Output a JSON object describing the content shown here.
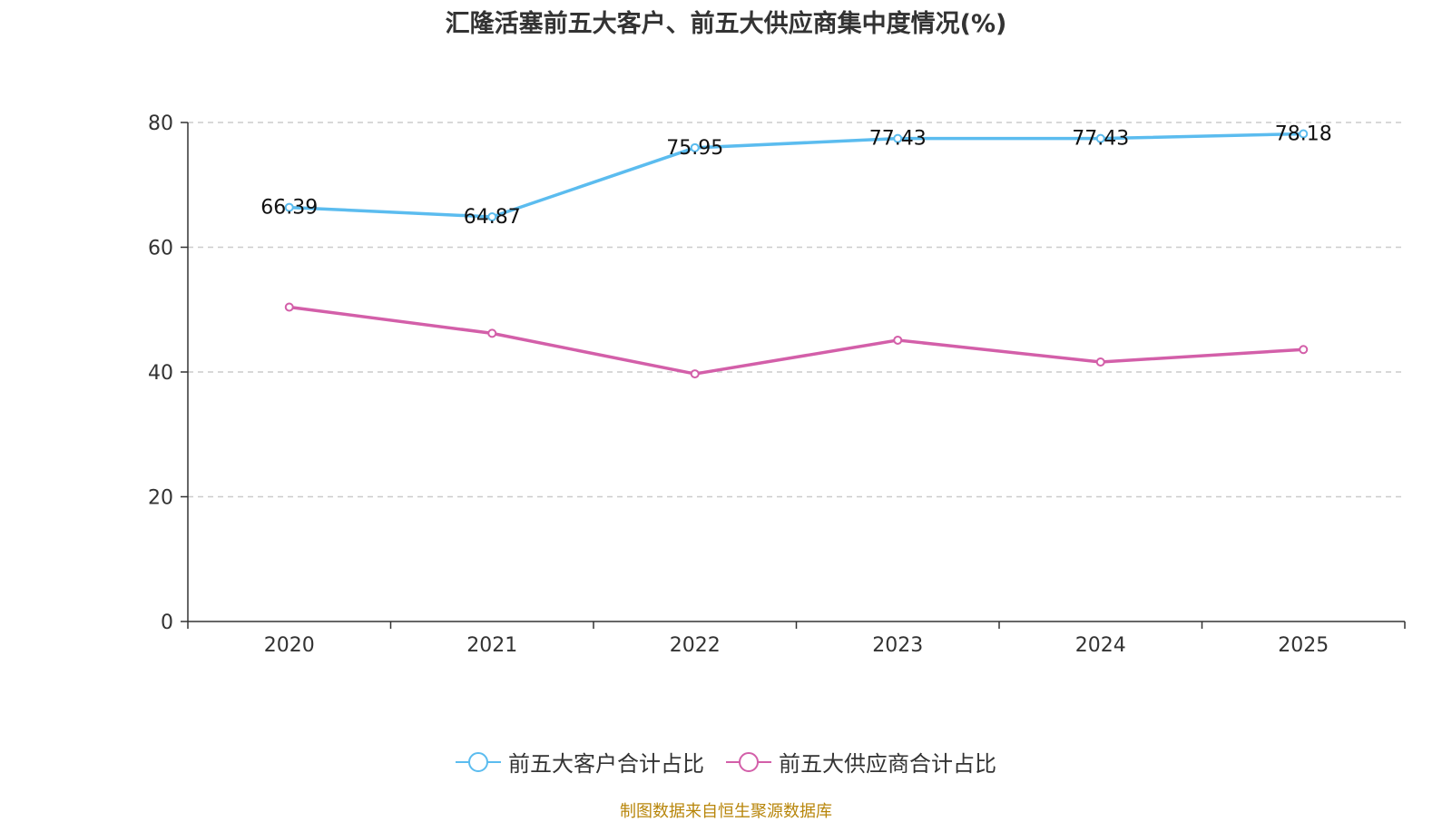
{
  "chart_data": {
    "type": "line",
    "title": "汇隆活塞前五大客户、前五大供应商集中度情况(%)",
    "categories": [
      "2020",
      "2021",
      "2022",
      "2023",
      "2024",
      "2025"
    ],
    "ylim": [
      0,
      80
    ],
    "yticks": [
      0,
      20,
      40,
      60,
      80
    ],
    "grid": true,
    "legend_position": "bottom",
    "series": [
      {
        "name": "前五大客户合计占比",
        "color": "#5bbcef",
        "values": [
          66.39,
          64.87,
          75.95,
          77.43,
          77.43,
          78.18
        ],
        "labels": [
          "66.39",
          "64.87",
          "75.95",
          "77.43",
          "77.43",
          "78.18"
        ]
      },
      {
        "name": "前五大供应商合计占比",
        "color": "#d35fa9",
        "values": [
          50.4,
          46.2,
          39.7,
          45.1,
          41.6,
          43.6
        ]
      }
    ]
  },
  "source": "制图数据来自恒生聚源数据库"
}
